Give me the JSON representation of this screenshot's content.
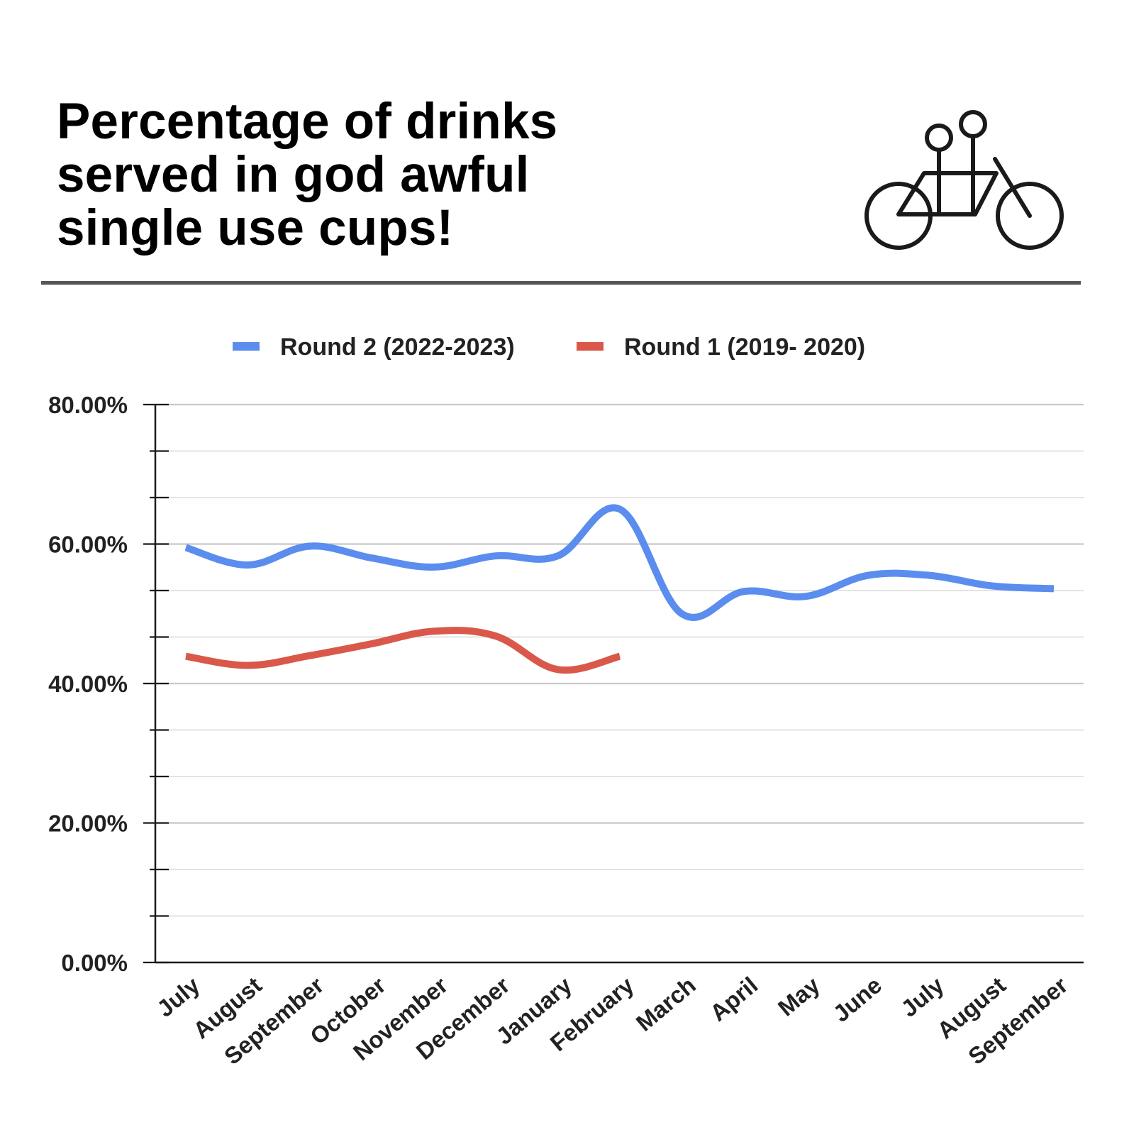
{
  "title": "Percentage of drinks\nserved in god awful\nsingle use cups!",
  "logo": {
    "icon": "tandem-bicycle-icon"
  },
  "chart_data": {
    "type": "line",
    "categories": [
      "July",
      "August",
      "September",
      "October",
      "November",
      "December",
      "January",
      "February",
      "March",
      "April",
      "May",
      "June",
      "July",
      "August",
      "September"
    ],
    "y_ticks": [
      "0.00%",
      "20.00%",
      "40.00%",
      "60.00%",
      "80.00%"
    ],
    "ylim": [
      0,
      80
    ],
    "grid": true,
    "legend_position": "top-center",
    "smooth": true,
    "series": [
      {
        "name": "Round 2 (2022-2023)",
        "color": "#5B8DEF",
        "values": [
          59.5,
          57.0,
          59.7,
          58.0,
          56.7,
          58.3,
          58.3,
          65.0,
          50.0,
          53.2,
          52.5,
          55.5,
          55.5,
          54.0,
          53.6
        ]
      },
      {
        "name": "Round 1 (2019- 2020)",
        "color": "#D9584A",
        "values": [
          43.9,
          42.6,
          44.0,
          45.7,
          47.5,
          46.8,
          42.0,
          43.9,
          null,
          null,
          null,
          null,
          null,
          null,
          null
        ]
      }
    ]
  }
}
